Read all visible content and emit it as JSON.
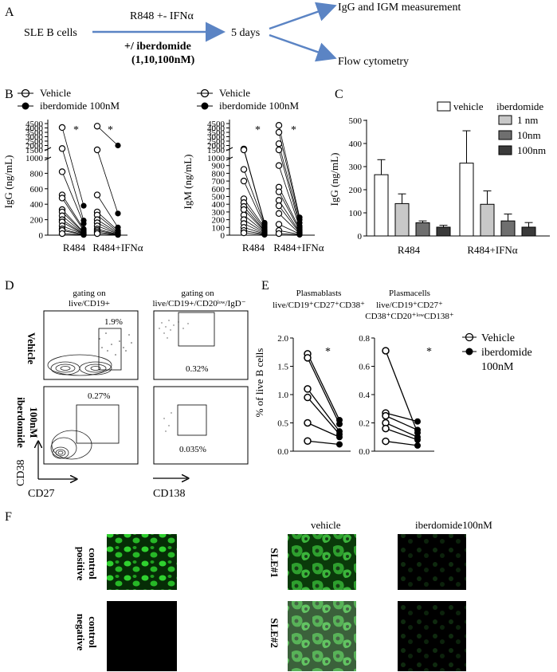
{
  "panel_labels": {
    "a": "A",
    "b": "B",
    "c": "C",
    "d": "D",
    "e": "E",
    "f": "F"
  },
  "schematic": {
    "source": "SLE B cells",
    "treatment_top": "R848 +- IFNα",
    "treatment_bottom_1": "+/ iberdomide",
    "treatment_bottom_2": "(1,10,100nM)",
    "timepoint": "5 days",
    "outcome_1": "IgG and IGM measurement",
    "outcome_2": "Flow cytometry"
  },
  "chart_data": [
    {
      "id": "B-IgG",
      "type": "scatter",
      "ylabel": "IgG (ng/mL)",
      "categories": [
        "R484",
        "R484+IFNα"
      ],
      "legend": [
        "Vehicle",
        "iberdomide 100nM"
      ],
      "y_ticks_lower": [
        "0",
        "200",
        "400",
        "600",
        "800",
        "1000"
      ],
      "y_ticks_upper": [
        "1500",
        "2000",
        "2500",
        "3000",
        "3500",
        "4000",
        "4500"
      ],
      "significance": [
        "*",
        "*"
      ],
      "pairs": [
        {
          "category": "R484",
          "vehicle": [
            4050,
            1650,
            820,
            520,
            480,
            330,
            300,
            250,
            200,
            170,
            120,
            80,
            60,
            20
          ],
          "iberdomide": [
            380,
            190,
            150,
            80,
            60,
            40,
            30,
            20,
            15,
            10,
            10,
            5,
            5,
            3
          ]
        },
        {
          "category": "R484+IFNα",
          "vehicle": [
            4200,
            1500,
            520,
            300,
            260,
            200,
            160,
            120,
            80,
            60,
            40,
            20
          ],
          "iberdomide": [
            2000,
            280,
            100,
            60,
            40,
            30,
            20,
            15,
            10,
            8,
            5,
            3
          ]
        }
      ]
    },
    {
      "id": "B-IgM",
      "type": "scatter",
      "ylabel": "IgM (ng/mL)",
      "categories": [
        "R484",
        "R484+IFNα"
      ],
      "legend": [
        "Vehicle",
        "iberdomide 100nM"
      ],
      "y_ticks_lower": [
        "0",
        "100",
        "200",
        "300",
        "400",
        "500",
        "600",
        "700",
        "800",
        "900",
        "1000"
      ],
      "y_ticks_upper": [
        "1500",
        "2000",
        "2500",
        "3000",
        "3500",
        "4000",
        "4500"
      ],
      "significance": [
        "*",
        "*"
      ],
      "pairs": [
        {
          "category": "R484",
          "vehicle": [
            1600,
            1200,
            850,
            700,
            470,
            420,
            370,
            330,
            260,
            200,
            150,
            100,
            60,
            30
          ],
          "iberdomide": [
            160,
            150,
            140,
            120,
            100,
            80,
            60,
            50,
            40,
            30,
            20,
            15,
            10,
            5
          ]
        },
        {
          "category": "R484+IFNα",
          "vehicle": [
            4300,
            3500,
            2200,
            1300,
            900,
            620,
            560,
            450,
            380,
            280,
            140,
            60,
            20
          ],
          "iberdomide": [
            230,
            200,
            160,
            120,
            100,
            80,
            60,
            40,
            30,
            20,
            15,
            10,
            5
          ]
        }
      ]
    },
    {
      "id": "C",
      "type": "bar",
      "ylabel": "IgG (ng/mL)",
      "categories": [
        "R484",
        "R484+IFNα"
      ],
      "ylim": [
        0,
        500
      ],
      "y_ticks": [
        "0",
        "100",
        "200",
        "300",
        "400",
        "500"
      ],
      "legend_title": "iberdomide",
      "series": [
        {
          "name": "vehicle",
          "color": "#ffffff",
          "values": [
            265,
            315
          ],
          "errors": [
            65,
            140
          ]
        },
        {
          "name": "1 nm",
          "color": "#c8c8c8",
          "values": [
            140,
            137
          ],
          "errors": [
            42,
            58
          ]
        },
        {
          "name": "10nm",
          "color": "#6f6f6f",
          "values": [
            57,
            65
          ],
          "errors": [
            8,
            30
          ]
        },
        {
          "name": "100nm",
          "color": "#3a3a3a",
          "values": [
            38,
            38
          ],
          "errors": [
            8,
            20
          ]
        }
      ]
    },
    {
      "id": "E-plasmablasts",
      "type": "scatter",
      "title_1": "Plasmablasts",
      "title_2": "live/CD19⁺CD27⁺CD38⁺",
      "ylabel": "% of live B cells",
      "ylim": [
        0,
        2.0
      ],
      "y_ticks": [
        "0.0",
        "0.5",
        "1.0",
        "1.5",
        "2.0"
      ],
      "significance": "*",
      "pairs": [
        {
          "vehicle": 1.72,
          "iberdomide": 0.55
        },
        {
          "vehicle": 1.65,
          "iberdomide": 0.48
        },
        {
          "vehicle": 1.1,
          "iberdomide": 0.35
        },
        {
          "vehicle": 0.95,
          "iberdomide": 0.3
        },
        {
          "vehicle": 0.5,
          "iberdomide": 0.25
        },
        {
          "vehicle": 0.18,
          "iberdomide": 0.12
        }
      ]
    },
    {
      "id": "E-plasmacells",
      "type": "scatter",
      "title_1": "Plasmacells",
      "title_2": "live/CD19⁺CD27⁺",
      "title_3": "CD38⁺CD20⁺ˡᵒʷCD138⁺",
      "ylim": [
        0,
        0.8
      ],
      "y_ticks": [
        "0.0",
        "0.2",
        "0.4",
        "0.6",
        "0.8"
      ],
      "significance": "*",
      "legend": [
        "Vehicle",
        "iberdomide",
        "100nM"
      ],
      "pairs": [
        {
          "vehicle": 0.71,
          "iberdomide": 0.13
        },
        {
          "vehicle": 0.27,
          "iberdomide": 0.21
        },
        {
          "vehicle": 0.25,
          "iberdomide": 0.15
        },
        {
          "vehicle": 0.2,
          "iberdomide": 0.1
        },
        {
          "vehicle": 0.16,
          "iberdomide": 0.08
        },
        {
          "vehicle": 0.07,
          "iberdomide": 0.04
        }
      ]
    }
  ],
  "flow": {
    "gate_1_l1": "gating on",
    "gate_1_l2": "live/CD19+",
    "gate_2_l1": "gating on",
    "gate_2_l2": "live/CD19+/CD20ˡᵒʷ/IgD⁻",
    "row_1": "Vehicle",
    "row_2_l1": "iberdomide",
    "row_2_l2": "100nM",
    "pct_v1": "1.9%",
    "pct_v2": "0.32%",
    "pct_i1": "0.27%",
    "pct_i2": "0.035%",
    "axis_cd38": "CD38",
    "axis_cd27": "CD27",
    "axis_cd138": "CD138"
  },
  "imaging": {
    "col_vehicle": "vehicle",
    "col_iberdomide": "iberdomide100nM",
    "pos_1": "positive",
    "pos_2": "control",
    "neg_1": "negative",
    "neg_2": "control",
    "sle1": "SLE#1",
    "sle2": "SLE#2",
    "colors": {
      "stain": "#2fbf2f",
      "background": "#000000"
    }
  }
}
